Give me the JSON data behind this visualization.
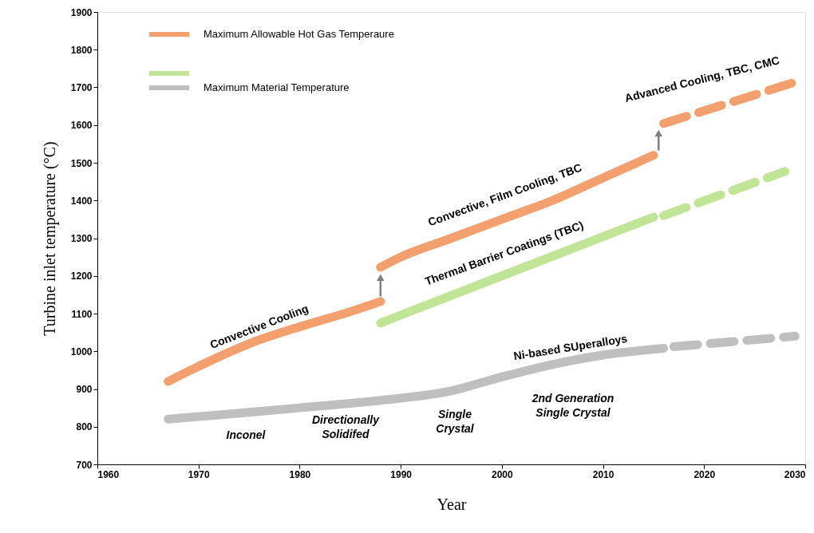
{
  "chart_data": {
    "type": "line",
    "xlabel": "Year",
    "ylabel": "Turbine inlet temperature (°C)",
    "xlim": [
      1960,
      2030
    ],
    "xticks": [
      1960,
      1970,
      1980,
      1990,
      2000,
      2010,
      2020,
      2030
    ],
    "ylim": [
      700,
      1900
    ],
    "yticks": [
      700,
      800,
      900,
      1000,
      1100,
      1200,
      1300,
      1400,
      1500,
      1600,
      1700,
      1800,
      1900
    ],
    "grid": false,
    "legend": "top left",
    "marker": "none",
    "series": [
      {
        "name": "Maximum Allowable Hot Gas Temperaure",
        "color": "#f4a06e",
        "line_style": "solid",
        "x": [
          1967,
          1970,
          1975,
          1980,
          1985,
          1988
        ],
        "values": [
          920,
          960,
          1020,
          1065,
          1105,
          1132
        ]
      },
      {
        "color": "#f4a06e",
        "line_style": "solid",
        "x": [
          1988,
          1990,
          1995,
          2000,
          2005,
          2010,
          2015
        ],
        "values": [
          1223,
          1250,
          1300,
          1350,
          1400,
          1460,
          1520
        ]
      },
      {
        "color": "#f4a06e",
        "line_style": "dashed",
        "x": [
          2016,
          2029
        ],
        "values": [
          1604,
          1714
        ]
      },
      {
        "color": "#c0e596",
        "line_style": "solid",
        "x": [
          1988,
          2000,
          2015
        ],
        "values": [
          1075,
          1200,
          1356
        ]
      },
      {
        "color": "#c0e596",
        "line_style": "dashed",
        "x": [
          2016,
          2028
        ],
        "values": [
          1360,
          1477
        ]
      },
      {
        "name": "Maximum Material Temperature",
        "color": "#bfbfbf",
        "line_style": "solid",
        "x": [
          1967,
          1975,
          1980,
          1988,
          1995,
          2000,
          2005,
          2010,
          2016
        ],
        "values": [
          820,
          838,
          850,
          870,
          895,
          932,
          965,
          990,
          1008
        ]
      },
      {
        "color": "#bfbfbf",
        "line_style": "dashed",
        "x": [
          2017,
          2029
        ],
        "values": [
          1012,
          1040
        ]
      }
    ],
    "annotations": [
      "Convective Cooling",
      "Convective, Film Cooling, TBC",
      "Thermal Barrier Coatings (TBC)",
      "Advanced Cooling, TBC, CMC",
      "Ni-based SUperalloys",
      "Inconel",
      "Directionally\nSolidifed",
      "Single\nCrystal",
      "2nd Generation\nSingle Crystal"
    ]
  }
}
